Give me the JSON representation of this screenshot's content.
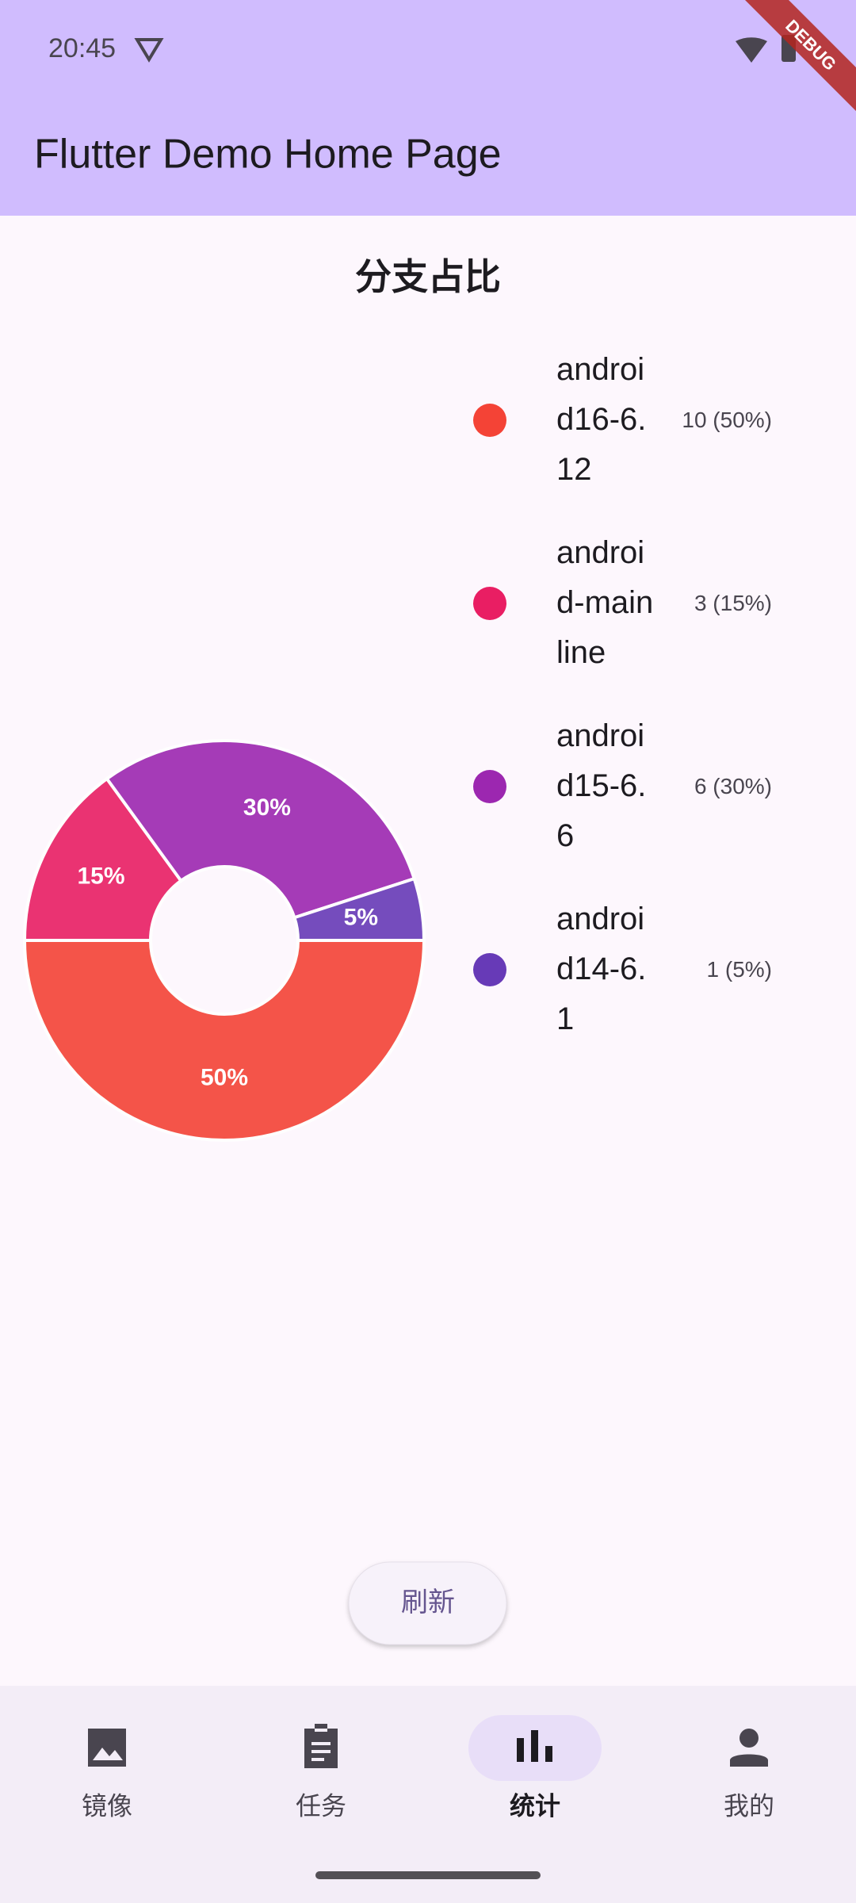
{
  "status_bar": {
    "time": "20:45"
  },
  "debug_banner": "DEBUG",
  "app_bar": {
    "title": "Flutter Demo Home Page"
  },
  "chart_data": {
    "type": "pie",
    "title": "分支占比",
    "categories": [
      "android16-6.12",
      "android-mainline",
      "android15-6.6",
      "android14-6.1"
    ],
    "values": [
      50,
      15,
      30,
      5
    ],
    "value_labels": [
      "50%",
      "15%",
      "30%",
      "5%"
    ],
    "legend_labels": [
      "10 (50%)",
      "3 (15%)",
      "6 (30%)",
      "1 (5%)"
    ],
    "colors": [
      "#f44336",
      "#e91e63",
      "#9c27b0",
      "#673ab7"
    ]
  },
  "button": {
    "label": "刷新"
  },
  "nav": {
    "items": [
      {
        "label": "镜像"
      },
      {
        "label": "任务"
      },
      {
        "label": "统计",
        "selected": true
      },
      {
        "label": "我的"
      }
    ]
  }
}
